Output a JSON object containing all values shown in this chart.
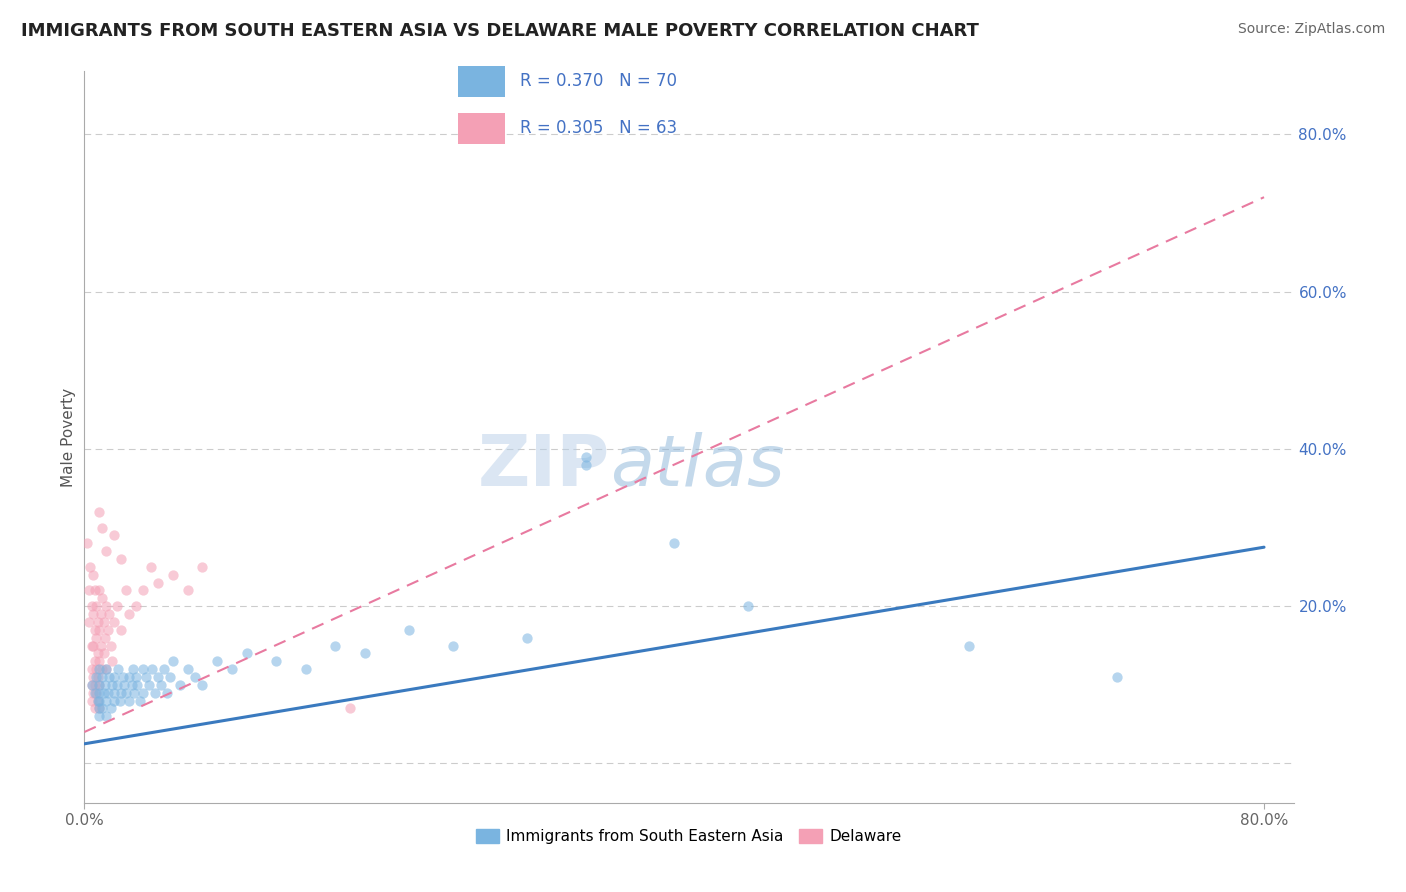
{
  "title": "IMMIGRANTS FROM SOUTH EASTERN ASIA VS DELAWARE MALE POVERTY CORRELATION CHART",
  "source": "Source: ZipAtlas.com",
  "ylabel": "Male Poverty",
  "xlim": [
    0.0,
    0.82
  ],
  "ylim": [
    -0.05,
    0.88
  ],
  "color_blue": "#7ab4e0",
  "color_pink": "#f4a0b5",
  "trendline_blue": [
    0.0,
    0.025,
    0.8,
    0.275
  ],
  "trendline_pink": [
    0.0,
    0.04,
    0.8,
    0.72
  ],
  "watermark_zip": "ZIP",
  "watermark_atlas": "atlas",
  "legend_text_1": "R = 0.370   N = 70",
  "legend_text_2": "R = 0.305   N = 63",
  "blue_scatter": [
    [
      0.005,
      0.1
    ],
    [
      0.007,
      0.09
    ],
    [
      0.008,
      0.11
    ],
    [
      0.009,
      0.08
    ],
    [
      0.01,
      0.12
    ],
    [
      0.01,
      0.07
    ],
    [
      0.01,
      0.09
    ],
    [
      0.01,
      0.06
    ],
    [
      0.01,
      0.1
    ],
    [
      0.01,
      0.08
    ],
    [
      0.012,
      0.11
    ],
    [
      0.012,
      0.07
    ],
    [
      0.013,
      0.09
    ],
    [
      0.014,
      0.1
    ],
    [
      0.015,
      0.08
    ],
    [
      0.015,
      0.12
    ],
    [
      0.015,
      0.06
    ],
    [
      0.016,
      0.09
    ],
    [
      0.017,
      0.11
    ],
    [
      0.018,
      0.07
    ],
    [
      0.019,
      0.1
    ],
    [
      0.02,
      0.09
    ],
    [
      0.02,
      0.08
    ],
    [
      0.02,
      0.11
    ],
    [
      0.022,
      0.1
    ],
    [
      0.023,
      0.12
    ],
    [
      0.024,
      0.08
    ],
    [
      0.025,
      0.09
    ],
    [
      0.026,
      0.11
    ],
    [
      0.027,
      0.1
    ],
    [
      0.028,
      0.09
    ],
    [
      0.03,
      0.11
    ],
    [
      0.03,
      0.08
    ],
    [
      0.032,
      0.1
    ],
    [
      0.033,
      0.12
    ],
    [
      0.034,
      0.09
    ],
    [
      0.035,
      0.11
    ],
    [
      0.036,
      0.1
    ],
    [
      0.038,
      0.08
    ],
    [
      0.04,
      0.12
    ],
    [
      0.04,
      0.09
    ],
    [
      0.042,
      0.11
    ],
    [
      0.044,
      0.1
    ],
    [
      0.046,
      0.12
    ],
    [
      0.048,
      0.09
    ],
    [
      0.05,
      0.11
    ],
    [
      0.052,
      0.1
    ],
    [
      0.054,
      0.12
    ],
    [
      0.056,
      0.09
    ],
    [
      0.058,
      0.11
    ],
    [
      0.06,
      0.13
    ],
    [
      0.065,
      0.1
    ],
    [
      0.07,
      0.12
    ],
    [
      0.075,
      0.11
    ],
    [
      0.08,
      0.1
    ],
    [
      0.09,
      0.13
    ],
    [
      0.1,
      0.12
    ],
    [
      0.11,
      0.14
    ],
    [
      0.13,
      0.13
    ],
    [
      0.15,
      0.12
    ],
    [
      0.17,
      0.15
    ],
    [
      0.19,
      0.14
    ],
    [
      0.22,
      0.17
    ],
    [
      0.25,
      0.15
    ],
    [
      0.3,
      0.16
    ],
    [
      0.34,
      0.39
    ],
    [
      0.34,
      0.38
    ],
    [
      0.4,
      0.28
    ],
    [
      0.45,
      0.2
    ],
    [
      0.6,
      0.15
    ],
    [
      0.7,
      0.11
    ]
  ],
  "pink_scatter": [
    [
      0.002,
      0.28
    ],
    [
      0.003,
      0.22
    ],
    [
      0.003,
      0.18
    ],
    [
      0.004,
      0.25
    ],
    [
      0.005,
      0.2
    ],
    [
      0.005,
      0.15
    ],
    [
      0.005,
      0.12
    ],
    [
      0.005,
      0.1
    ],
    [
      0.005,
      0.08
    ],
    [
      0.006,
      0.24
    ],
    [
      0.006,
      0.19
    ],
    [
      0.006,
      0.15
    ],
    [
      0.006,
      0.11
    ],
    [
      0.006,
      0.09
    ],
    [
      0.007,
      0.22
    ],
    [
      0.007,
      0.17
    ],
    [
      0.007,
      0.13
    ],
    [
      0.007,
      0.1
    ],
    [
      0.007,
      0.07
    ],
    [
      0.008,
      0.2
    ],
    [
      0.008,
      0.16
    ],
    [
      0.008,
      0.12
    ],
    [
      0.008,
      0.09
    ],
    [
      0.009,
      0.18
    ],
    [
      0.009,
      0.14
    ],
    [
      0.009,
      0.11
    ],
    [
      0.009,
      0.08
    ],
    [
      0.01,
      0.22
    ],
    [
      0.01,
      0.17
    ],
    [
      0.01,
      0.13
    ],
    [
      0.01,
      0.1
    ],
    [
      0.01,
      0.07
    ],
    [
      0.011,
      0.19
    ],
    [
      0.011,
      0.15
    ],
    [
      0.012,
      0.21
    ],
    [
      0.012,
      0.12
    ],
    [
      0.013,
      0.18
    ],
    [
      0.013,
      0.14
    ],
    [
      0.014,
      0.16
    ],
    [
      0.015,
      0.2
    ],
    [
      0.015,
      0.12
    ],
    [
      0.016,
      0.17
    ],
    [
      0.017,
      0.19
    ],
    [
      0.018,
      0.15
    ],
    [
      0.019,
      0.13
    ],
    [
      0.02,
      0.18
    ],
    [
      0.022,
      0.2
    ],
    [
      0.025,
      0.17
    ],
    [
      0.028,
      0.22
    ],
    [
      0.03,
      0.19
    ],
    [
      0.035,
      0.2
    ],
    [
      0.04,
      0.22
    ],
    [
      0.045,
      0.25
    ],
    [
      0.05,
      0.23
    ],
    [
      0.06,
      0.24
    ],
    [
      0.07,
      0.22
    ],
    [
      0.08,
      0.25
    ],
    [
      0.01,
      0.32
    ],
    [
      0.012,
      0.3
    ],
    [
      0.015,
      0.27
    ],
    [
      0.02,
      0.29
    ],
    [
      0.025,
      0.26
    ],
    [
      0.18,
      0.07
    ]
  ]
}
